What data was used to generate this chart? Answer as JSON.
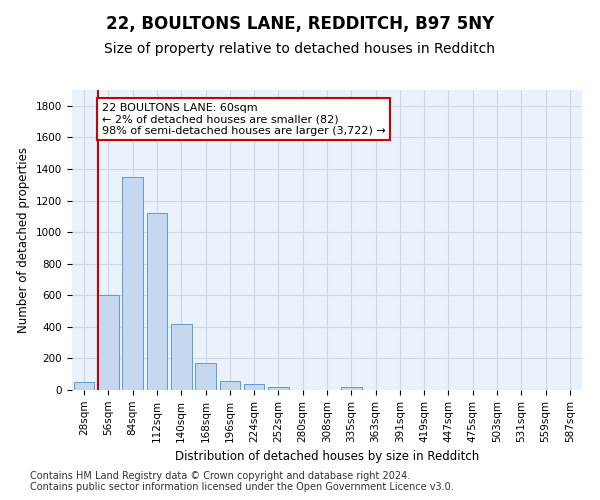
{
  "title": "22, BOULTONS LANE, REDDITCH, B97 5NY",
  "subtitle": "Size of property relative to detached houses in Redditch",
  "xlabel": "Distribution of detached houses by size in Redditch",
  "ylabel": "Number of detached properties",
  "categories": [
    "28sqm",
    "56sqm",
    "84sqm",
    "112sqm",
    "140sqm",
    "168sqm",
    "196sqm",
    "224sqm",
    "252sqm",
    "280sqm",
    "308sqm",
    "335sqm",
    "363sqm",
    "391sqm",
    "419sqm",
    "447sqm",
    "475sqm",
    "503sqm",
    "531sqm",
    "559sqm",
    "587sqm"
  ],
  "values": [
    50,
    600,
    1350,
    1120,
    420,
    170,
    60,
    35,
    20,
    0,
    0,
    20,
    0,
    0,
    0,
    0,
    0,
    0,
    0,
    0,
    0
  ],
  "bar_color": "#c5d8f0",
  "bar_edge_color": "#5b9bd5",
  "highlight_color": "#cc0000",
  "annotation_text": "22 BOULTONS LANE: 60sqm\n← 2% of detached houses are smaller (82)\n98% of semi-detached houses are larger (3,722) →",
  "annotation_box_color": "#ffffff",
  "annotation_box_edge_color": "#cc0000",
  "ylim": [
    0,
    1900
  ],
  "yticks": [
    0,
    200,
    400,
    600,
    800,
    1000,
    1200,
    1400,
    1600,
    1800
  ],
  "footer_line1": "Contains HM Land Registry data © Crown copyright and database right 2024.",
  "footer_line2": "Contains public sector information licensed under the Open Government Licence v3.0.",
  "title_fontsize": 12,
  "subtitle_fontsize": 10,
  "axis_label_fontsize": 8.5,
  "tick_fontsize": 7.5,
  "annotation_fontsize": 8,
  "footer_fontsize": 7,
  "bg_color": "#ffffff",
  "grid_color": "#c8d8e8",
  "plot_bg_color": "#eaf2fb"
}
